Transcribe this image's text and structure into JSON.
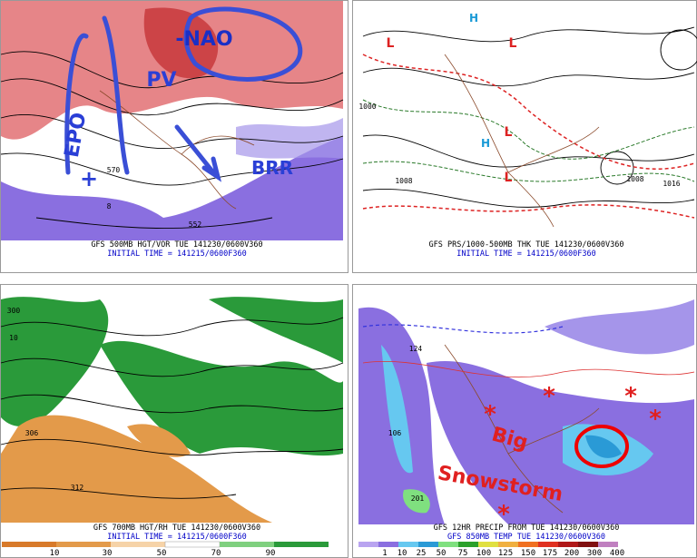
{
  "panels": [
    {
      "lines": [
        "GFS 500MB HGT/VOR TUE 141230/0600V360",
        "INITIAL TIME = 141215/0600F360"
      ],
      "annotations": [
        "-NAO",
        "PV",
        "BRR",
        "EPO",
        "+"
      ],
      "labels": [
        "570",
        "552",
        "8"
      ]
    },
    {
      "lines": [
        "GFS PRS/1000-500MB THK TUE 141230/0600V360",
        "INITIAL TIME = 141215/0600F360"
      ],
      "annotations": [
        "L",
        "L",
        "L",
        "L",
        "H",
        "H"
      ],
      "labels": [
        "1000",
        "1008",
        "1008",
        "1016"
      ]
    },
    {
      "lines": [
        "GFS 700MB HGT/RH TUE 141230/0600V360",
        "INITIAL TIME = 141215/0600F360"
      ],
      "annotations": [],
      "labels": [
        "300",
        "306",
        "312",
        "10"
      ]
    },
    {
      "lines": [
        "GFS 12HR PRECIP FROM TUE 141230/0600V360",
        "GFS 850MB TEMP TUE 141230/0600V360"
      ],
      "annotations": [
        "Big",
        "Snowstorm",
        "*",
        "*",
        "*",
        "*",
        "*"
      ],
      "labels": [
        "124",
        "106",
        "201"
      ]
    }
  ],
  "colorbars": [
    {
      "labels": [
        "10",
        "30",
        "50",
        "70",
        "90"
      ]
    },
    {
      "labels": [
        "1",
        "10",
        "25",
        "50",
        "75",
        "100",
        "125",
        "150",
        "175",
        "200",
        "300",
        "400"
      ]
    }
  ]
}
